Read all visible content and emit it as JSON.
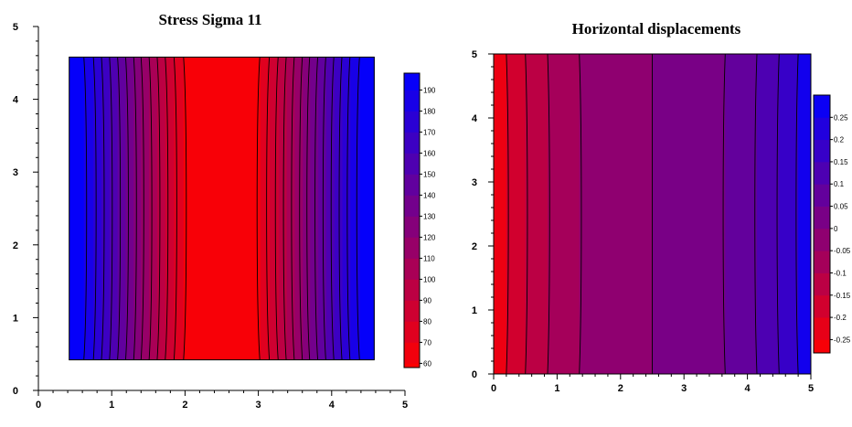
{
  "chart_data": [
    {
      "type": "heatmap",
      "title": "Stress Sigma 11",
      "xlabel": "",
      "ylabel": "",
      "xlim": [
        0,
        5
      ],
      "ylim": [
        0,
        5
      ],
      "xticks": [
        "0",
        "1",
        "2",
        "3",
        "4",
        "5"
      ],
      "yticks": [
        "0",
        "1",
        "2",
        "3",
        "4",
        "5"
      ],
      "domain": {
        "x": [
          0.42,
          4.58
        ],
        "y": [
          0.42,
          4.58
        ]
      },
      "colorbar": {
        "levels": [
          60,
          70,
          80,
          90,
          100,
          110,
          120,
          130,
          140,
          150,
          160,
          170,
          180,
          190
        ],
        "labels": [
          "60",
          "70",
          "80",
          "90",
          "100",
          "110",
          "120",
          "130",
          "140",
          "150",
          "160",
          "170",
          "180",
          "190"
        ],
        "colormap": [
          "#ff0000",
          "#0000ff"
        ],
        "range": [
          58,
          198
        ]
      },
      "contours": [
        {
          "level": 190,
          "x": [
            0.62,
            4.38
          ]
        },
        {
          "level": 180,
          "x": [
            0.75,
            4.25
          ]
        },
        {
          "level": 170,
          "x": [
            0.86,
            4.14
          ]
        },
        {
          "level": 160,
          "x": [
            0.97,
            4.03
          ]
        },
        {
          "level": 150,
          "x": [
            1.08,
            3.92
          ]
        },
        {
          "level": 140,
          "x": [
            1.19,
            3.81
          ]
        },
        {
          "level": 130,
          "x": [
            1.3,
            3.7
          ]
        },
        {
          "level": 120,
          "x": [
            1.4,
            3.6
          ]
        },
        {
          "level": 110,
          "x": [
            1.51,
            3.49
          ]
        },
        {
          "level": 100,
          "x": [
            1.62,
            3.38
          ]
        },
        {
          "level": 90,
          "x": [
            1.73,
            3.27
          ]
        },
        {
          "level": 80,
          "x": [
            1.85,
            3.15
          ]
        },
        {
          "level": 70,
          "x": [
            1.98,
            3.02
          ]
        }
      ]
    },
    {
      "type": "heatmap",
      "title": "Horizontal  displacements",
      "xlabel": "",
      "ylabel": "",
      "xlim": [
        0,
        5
      ],
      "ylim": [
        0,
        5
      ],
      "xticks": [
        "0",
        "1",
        "2",
        "3",
        "4",
        "5"
      ],
      "yticks": [
        "0",
        "1",
        "2",
        "3",
        "4",
        "5"
      ],
      "domain": {
        "x": [
          0,
          5
        ],
        "y": [
          0,
          5
        ]
      },
      "colorbar": {
        "levels": [
          -0.25,
          -0.2,
          -0.15,
          -0.1,
          -0.05,
          0,
          0.05,
          0.1,
          0.15,
          0.2,
          0.25
        ],
        "labels": [
          "-0.25",
          "-0.2",
          "-0.15",
          "-0.1",
          "-0.05",
          "0",
          "0.05",
          "0.1",
          "0.15",
          "0.2",
          "0.25"
        ],
        "colormap": [
          "#ff0000",
          "#0000ff"
        ],
        "range": [
          -0.28,
          0.3
        ]
      },
      "contours": [
        {
          "level": -0.2,
          "x": 0.2
        },
        {
          "level": -0.15,
          "x": 0.5
        },
        {
          "level": -0.1,
          "x": 0.85
        },
        {
          "level": -0.05,
          "x": 1.35
        },
        {
          "level": 0,
          "x": 2.5
        },
        {
          "level": 0.05,
          "x": 3.65
        },
        {
          "level": 0.1,
          "x": 4.15
        },
        {
          "level": 0.15,
          "x": 4.5
        },
        {
          "level": 0.2,
          "x": 4.8
        }
      ]
    }
  ]
}
